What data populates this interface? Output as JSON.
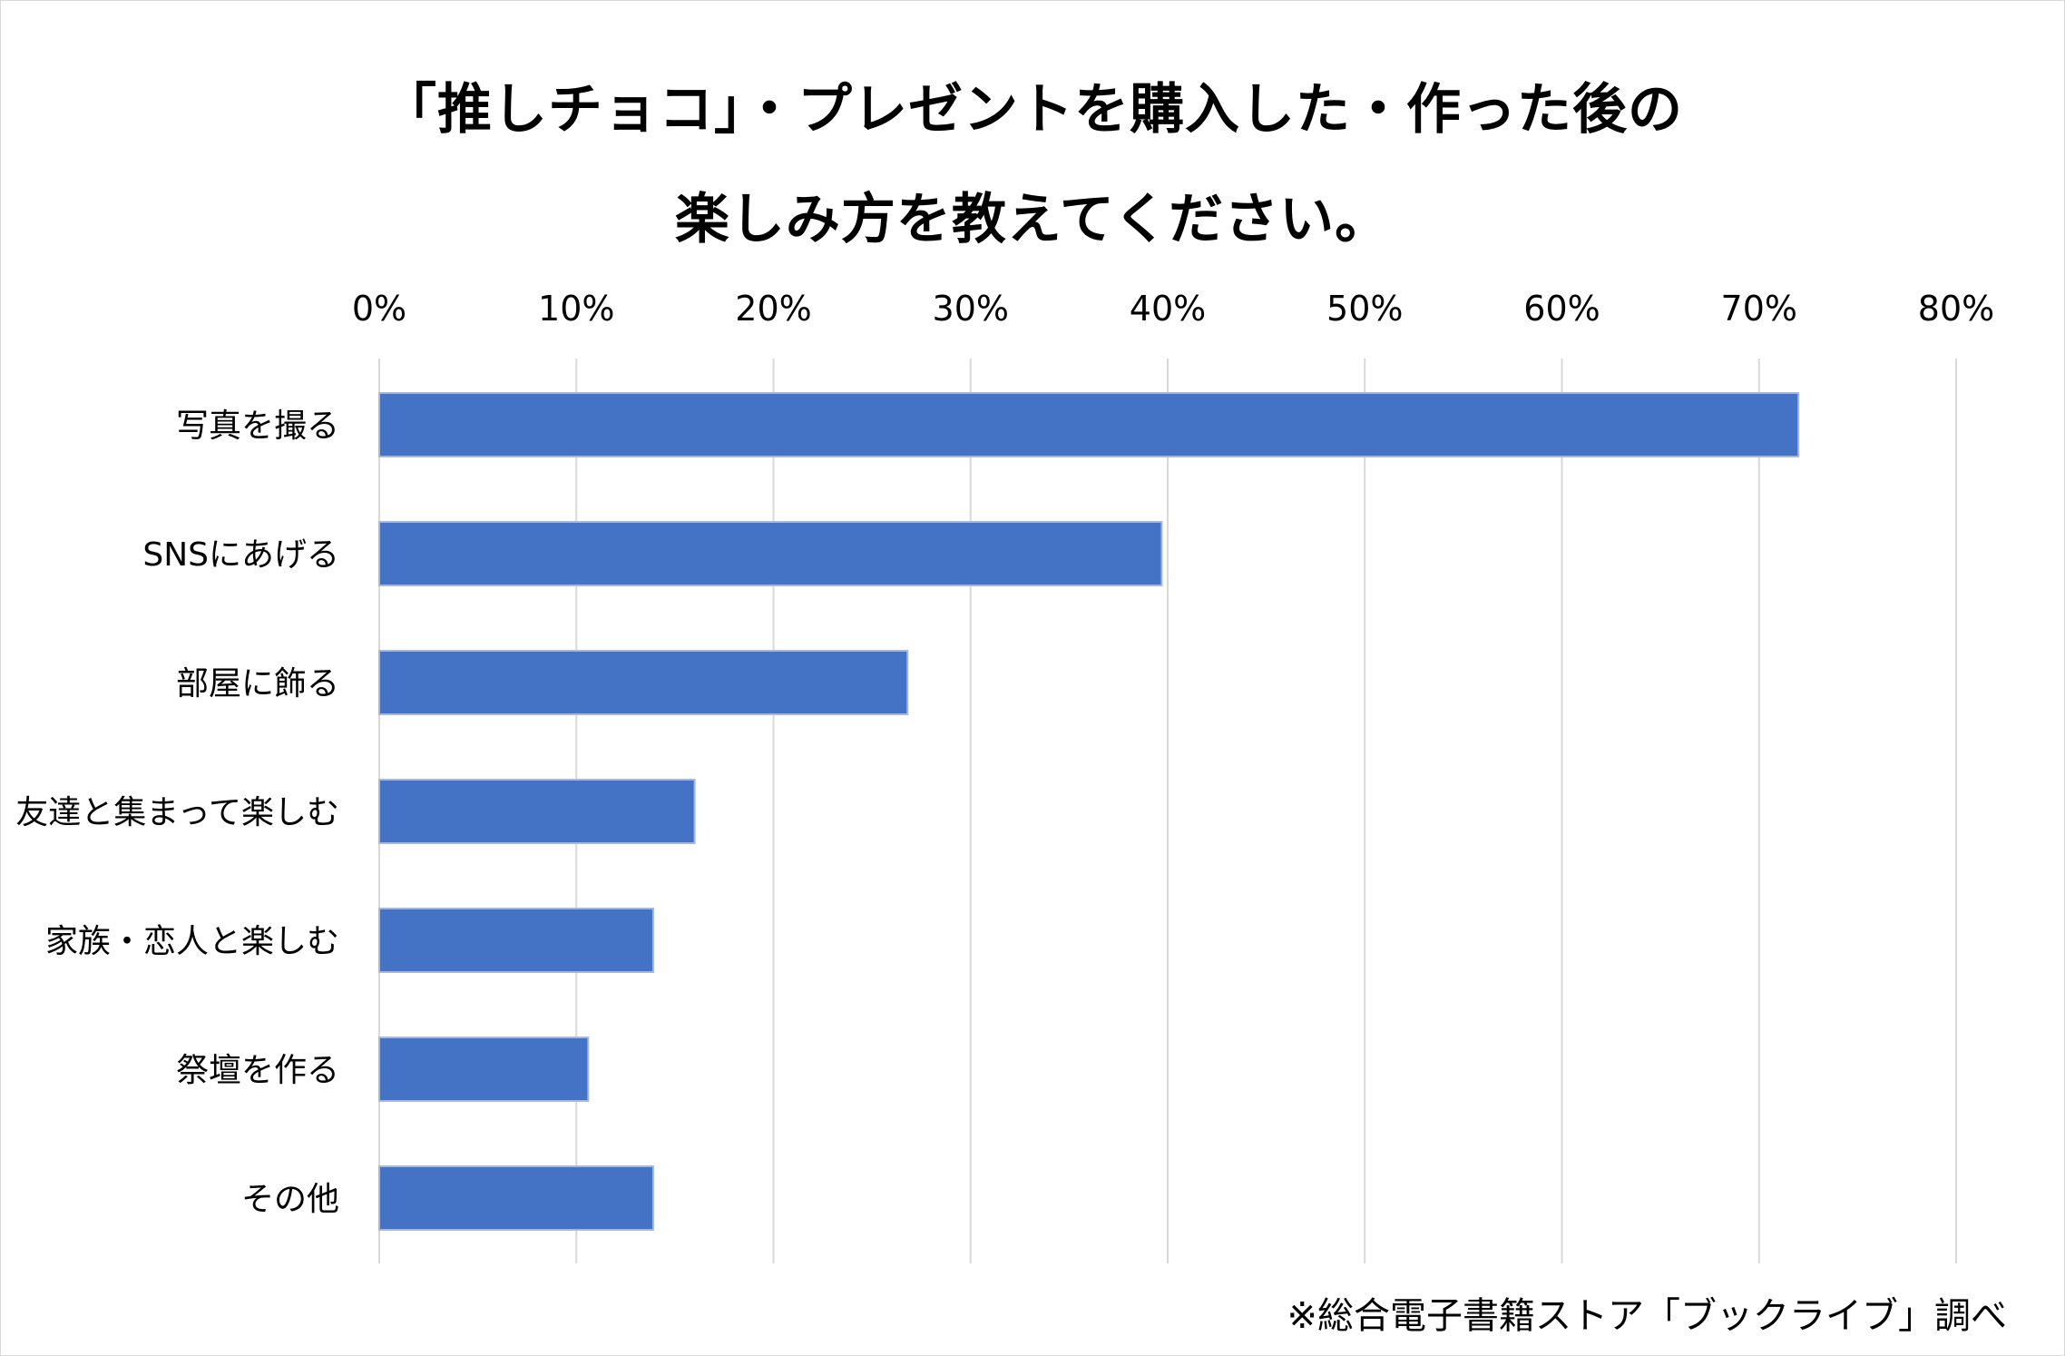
{
  "chart_data": {
    "type": "bar",
    "orientation": "horizontal",
    "title_lines": [
      "「推しチョコ」・プレゼントを購入した・作った後の",
      "楽しみ方を教えてください。"
    ],
    "categories": [
      "写真を撮る",
      "SNSにあげる",
      "部屋に飾る",
      "友達と集まって楽しむ",
      "家族・恋人と楽しむ",
      "祭壇を作る",
      "その他"
    ],
    "values": [
      72.0,
      39.7,
      26.8,
      16.0,
      13.9,
      10.6,
      13.9
    ],
    "unit": "%",
    "xlim": [
      0,
      80
    ],
    "x_ticks": [
      "0%",
      "10%",
      "20%",
      "30%",
      "40%",
      "50%",
      "60%",
      "70%",
      "80%"
    ],
    "x_axis_position": "top",
    "grid": true,
    "legend": "none",
    "bar_color": "#4472c4",
    "grid_color": "#d9d9d9",
    "source_note": "※総合電子書籍ストア「ブックライブ」調べ"
  }
}
